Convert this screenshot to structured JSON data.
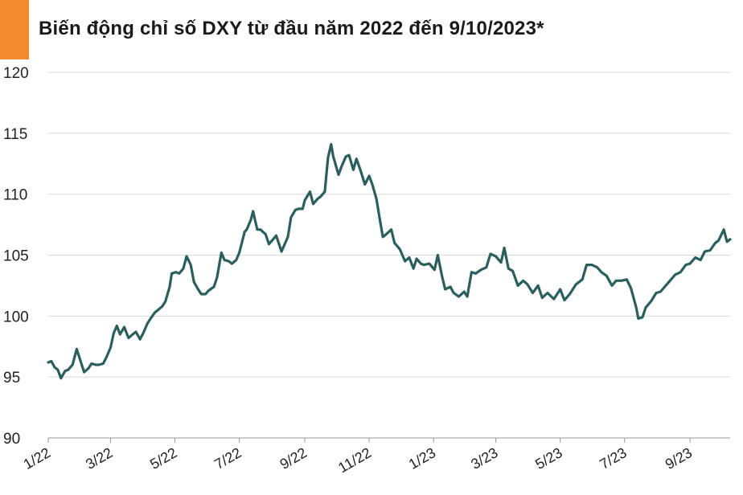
{
  "header": {
    "title": "Biến động chỉ số DXY từ đầu năm 2022 đến 9/10/2023*"
  },
  "colors": {
    "accent": "#F28A2E",
    "line": "#2A5F5E",
    "grid": "#D9D9D9"
  },
  "chart_data": {
    "type": "line",
    "title": "Biến động chỉ số DXY từ đầu năm 2022 đến 9/10/2023*",
    "xlabel": "",
    "ylabel": "",
    "grid": true,
    "ylim": [
      90,
      120
    ],
    "yticks": [
      90,
      95,
      100,
      105,
      110,
      115,
      120
    ],
    "xlim": [
      "2022-01-01",
      "2023-10-09"
    ],
    "xticks": [
      {
        "label": "1/22",
        "date": "2022-01-01"
      },
      {
        "label": "3/22",
        "date": "2022-03-01"
      },
      {
        "label": "5/22",
        "date": "2022-05-01"
      },
      {
        "label": "7/22",
        "date": "2022-07-01"
      },
      {
        "label": "9/22",
        "date": "2022-09-01"
      },
      {
        "label": "11/22",
        "date": "2022-11-01"
      },
      {
        "label": "1/23",
        "date": "2023-01-01"
      },
      {
        "label": "3/23",
        "date": "2023-03-01"
      },
      {
        "label": "5/23",
        "date": "2023-05-01"
      },
      {
        "label": "7/23",
        "date": "2023-07-01"
      },
      {
        "label": "9/23",
        "date": "2023-09-01"
      }
    ],
    "series": [
      {
        "x": [
          "2022-01-01",
          "2022-01-04",
          "2022-01-07",
          "2022-01-10",
          "2022-01-13",
          "2022-01-17",
          "2022-01-20",
          "2022-01-24",
          "2022-01-28",
          "2022-02-01",
          "2022-02-04",
          "2022-02-08",
          "2022-02-11",
          "2022-02-15",
          "2022-02-18",
          "2022-02-22",
          "2022-02-25",
          "2022-03-01",
          "2022-03-04",
          "2022-03-07",
          "2022-03-10",
          "2022-03-14",
          "2022-03-18",
          "2022-03-22",
          "2022-03-25",
          "2022-03-29",
          "2022-04-01",
          "2022-04-05",
          "2022-04-08",
          "2022-04-12",
          "2022-04-15",
          "2022-04-19",
          "2022-04-22",
          "2022-04-26",
          "2022-04-28",
          "2022-05-02",
          "2022-05-05",
          "2022-05-09",
          "2022-05-12",
          "2022-05-16",
          "2022-05-19",
          "2022-05-23",
          "2022-05-26",
          "2022-05-30",
          "2022-06-02",
          "2022-06-07",
          "2022-06-10",
          "2022-06-14",
          "2022-06-17",
          "2022-06-21",
          "2022-06-24",
          "2022-06-28",
          "2022-07-01",
          "2022-07-06",
          "2022-07-08",
          "2022-07-12",
          "2022-07-14",
          "2022-07-18",
          "2022-07-21",
          "2022-07-26",
          "2022-07-29",
          "2022-08-02",
          "2022-08-05",
          "2022-08-10",
          "2022-08-12",
          "2022-08-16",
          "2022-08-19",
          "2022-08-23",
          "2022-08-26",
          "2022-08-30",
          "2022-09-01",
          "2022-09-06",
          "2022-09-09",
          "2022-09-13",
          "2022-09-16",
          "2022-09-20",
          "2022-09-23",
          "2022-09-26",
          "2022-09-28",
          "2022-10-03",
          "2022-10-06",
          "2022-10-10",
          "2022-10-13",
          "2022-10-17",
          "2022-10-20",
          "2022-10-24",
          "2022-10-28",
          "2022-11-01",
          "2022-11-04",
          "2022-11-08",
          "2022-11-10",
          "2022-11-14",
          "2022-11-17",
          "2022-11-22",
          "2022-11-25",
          "2022-11-30",
          "2022-12-05",
          "2022-12-09",
          "2022-12-13",
          "2022-12-16",
          "2022-12-20",
          "2022-12-23",
          "2022-12-28",
          "2023-01-02",
          "2023-01-05",
          "2023-01-09",
          "2023-01-12",
          "2023-01-17",
          "2023-01-20",
          "2023-01-25",
          "2023-01-30",
          "2023-02-02",
          "2023-02-06",
          "2023-02-10",
          "2023-02-15",
          "2023-02-20",
          "2023-02-24",
          "2023-03-01",
          "2023-03-06",
          "2023-03-09",
          "2023-03-13",
          "2023-03-17",
          "2023-03-22",
          "2023-03-27",
          "2023-03-31",
          "2023-04-05",
          "2023-04-10",
          "2023-04-14",
          "2023-04-19",
          "2023-04-25",
          "2023-05-01",
          "2023-05-05",
          "2023-05-10",
          "2023-05-16",
          "2023-05-22",
          "2023-05-26",
          "2023-05-31",
          "2023-06-05",
          "2023-06-09",
          "2023-06-14",
          "2023-06-19",
          "2023-06-23",
          "2023-06-28",
          "2023-07-03",
          "2023-07-07",
          "2023-07-12",
          "2023-07-14",
          "2023-07-18",
          "2023-07-21",
          "2023-07-26",
          "2023-07-31",
          "2023-08-04",
          "2023-08-09",
          "2023-08-14",
          "2023-08-18",
          "2023-08-23",
          "2023-08-28",
          "2023-09-01",
          "2023-09-06",
          "2023-09-11",
          "2023-09-15",
          "2023-09-20",
          "2023-09-25",
          "2023-09-28",
          "2023-10-03",
          "2023-10-06",
          "2023-10-09"
        ],
        "values": [
          96.2,
          96.3,
          95.8,
          95.6,
          94.9,
          95.5,
          95.6,
          96.0,
          97.3,
          96.2,
          95.4,
          95.7,
          96.1,
          96.0,
          96.0,
          96.1,
          96.6,
          97.4,
          98.6,
          99.2,
          98.5,
          99.1,
          98.2,
          98.5,
          98.7,
          98.1,
          98.6,
          99.4,
          99.8,
          100.3,
          100.5,
          100.8,
          101.2,
          102.4,
          103.5,
          103.6,
          103.5,
          103.9,
          104.9,
          104.2,
          102.8,
          102.2,
          101.8,
          101.8,
          102.1,
          102.4,
          103.2,
          105.2,
          104.6,
          104.5,
          104.3,
          104.6,
          105.2,
          106.9,
          107.1,
          107.9,
          108.6,
          107.1,
          107.1,
          106.7,
          105.9,
          106.3,
          106.6,
          105.3,
          105.7,
          106.5,
          108.1,
          108.7,
          108.8,
          108.8,
          109.5,
          110.2,
          109.2,
          109.6,
          109.8,
          110.2,
          113.0,
          114.1,
          113.1,
          111.6,
          112.3,
          113.1,
          113.2,
          112.0,
          112.9,
          111.9,
          110.8,
          111.5,
          110.8,
          109.6,
          108.5,
          106.5,
          106.7,
          107.1,
          106.0,
          105.5,
          104.5,
          104.8,
          103.9,
          104.7,
          104.3,
          104.2,
          104.3,
          103.8,
          105.0,
          103.3,
          102.2,
          102.4,
          101.9,
          101.6,
          102.0,
          101.6,
          103.6,
          103.5,
          103.8,
          104.0,
          105.1,
          104.9,
          104.4,
          105.6,
          103.9,
          103.7,
          102.5,
          102.9,
          102.6,
          101.9,
          102.5,
          101.5,
          101.9,
          101.4,
          102.2,
          101.3,
          101.8,
          102.6,
          103.0,
          104.2,
          104.2,
          104.0,
          103.6,
          103.3,
          102.5,
          102.9,
          102.9,
          103.0,
          102.3,
          100.7,
          99.8,
          99.9,
          100.7,
          101.2,
          101.9,
          102.0,
          102.5,
          103.0,
          103.4,
          103.6,
          104.2,
          104.3,
          104.8,
          104.6,
          105.3,
          105.4,
          106.0,
          106.2,
          107.1,
          106.1,
          106.3
        ]
      }
    ]
  }
}
